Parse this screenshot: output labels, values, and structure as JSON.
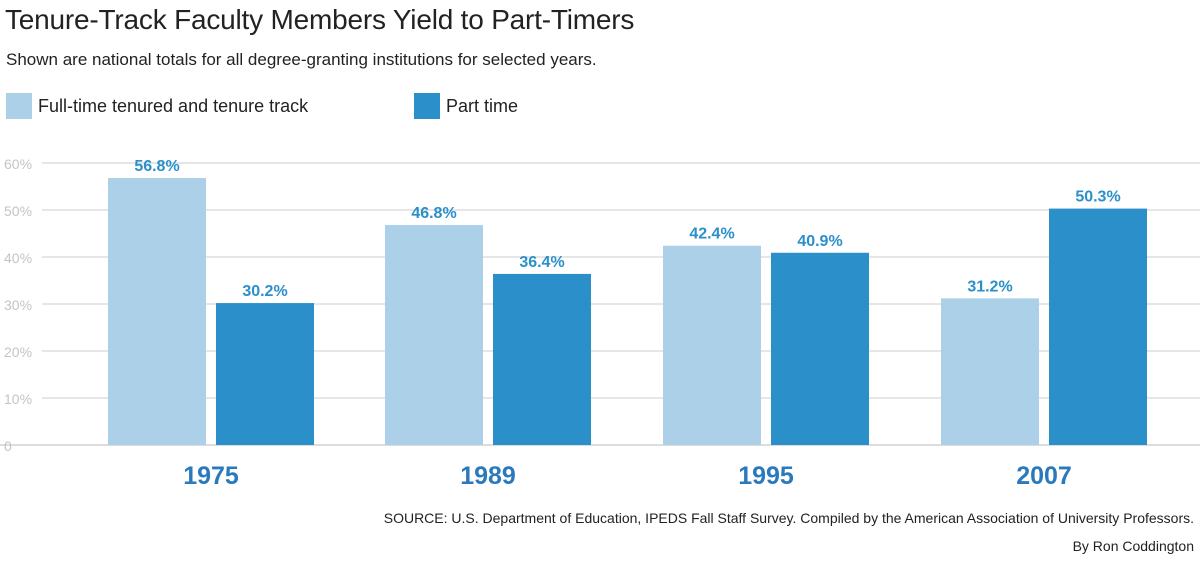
{
  "colors": {
    "full_time": "#abd0e8",
    "part_time": "#2b8fca",
    "value_label": "#2b8fca",
    "year_label": "#2a79bd",
    "grid": "#cccccc",
    "tick": "#c4c4c4"
  },
  "chart_data": {
    "type": "bar",
    "title": "Tenure-Track Faculty Members Yield to Part-Timers",
    "subtitle": "Shown are national totals for all degree-granting institutions for selected years.",
    "categories": [
      "1975",
      "1989",
      "1995",
      "2007"
    ],
    "series": [
      {
        "name": "Full-time tenured and tenure track",
        "values": [
          56.8,
          46.8,
          42.4,
          31.2
        ],
        "labels": [
          "56.8%",
          "46.8%",
          "42.4%",
          "31.2%"
        ]
      },
      {
        "name": "Part time",
        "values": [
          30.2,
          36.4,
          40.9,
          50.3
        ],
        "labels": [
          "30.2%",
          "36.4%",
          "40.9%",
          "50.3%"
        ]
      }
    ],
    "y_ticks": [
      "0",
      "10%",
      "20%",
      "30%",
      "40%",
      "50%",
      "60%"
    ],
    "ylim": [
      0,
      60
    ],
    "grid": true,
    "legend_position": "top-left"
  },
  "source": "SOURCE: U.S. Department of Education, IPEDS Fall Staff Survey. Compiled by the American Association of University Professors.",
  "credit": "By Ron Coddington"
}
